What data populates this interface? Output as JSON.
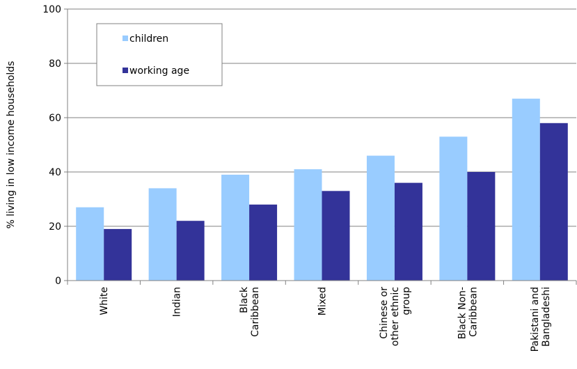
{
  "chart_data": {
    "type": "bar",
    "title": "",
    "xlabel": "",
    "ylabel": "% living in low income households",
    "ylim": [
      0,
      100
    ],
    "yticks": [
      0,
      20,
      40,
      60,
      80,
      100
    ],
    "grid": true,
    "legend_position": "top-left",
    "categories": [
      [
        "White"
      ],
      [
        "Indian"
      ],
      [
        "Black",
        "Caribbean"
      ],
      [
        "Mixed"
      ],
      [
        "Chinese or",
        "other ethnic",
        "group"
      ],
      [
        "Black Non-",
        "Caribbean"
      ],
      [
        "Pakistani and",
        "Bangladeshi"
      ]
    ],
    "series": [
      {
        "name": "children",
        "color": "#99ccff",
        "values": [
          27,
          34,
          39,
          41,
          46,
          53,
          67
        ]
      },
      {
        "name": "working age",
        "color": "#333399",
        "values": [
          19,
          22,
          28,
          33,
          36,
          40,
          58
        ]
      }
    ]
  }
}
